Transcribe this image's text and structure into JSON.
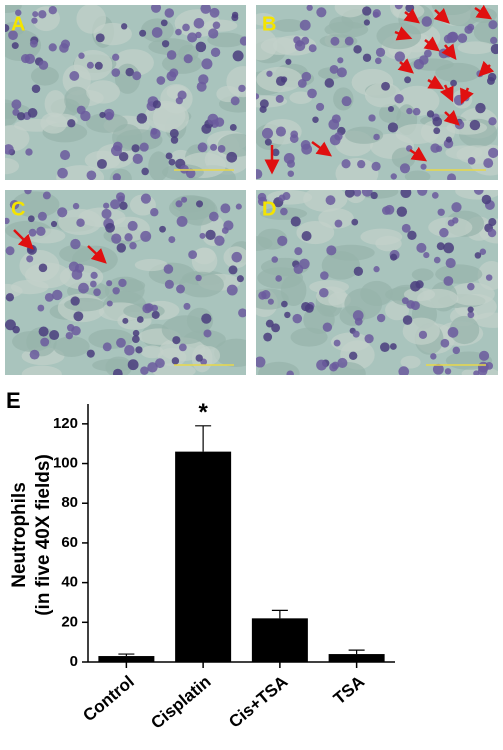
{
  "panels": [
    "A",
    "B",
    "C",
    "D"
  ],
  "chart_data": {
    "type": "bar",
    "panel_label": "E",
    "ylabel": [
      "Neutrophils",
      "(in five 40X fields)"
    ],
    "categories": [
      "Control",
      "Cisplatin",
      "Cis+TSA",
      "TSA"
    ],
    "values": [
      3,
      106,
      22,
      4
    ],
    "errors": [
      1,
      13,
      4,
      2
    ],
    "annotations": [
      {
        "text": "*",
        "category": 1
      }
    ],
    "color": "#000000",
    "ylim": [
      0,
      130
    ],
    "yticks": [
      0,
      20,
      40,
      60,
      80,
      100,
      120
    ]
  }
}
